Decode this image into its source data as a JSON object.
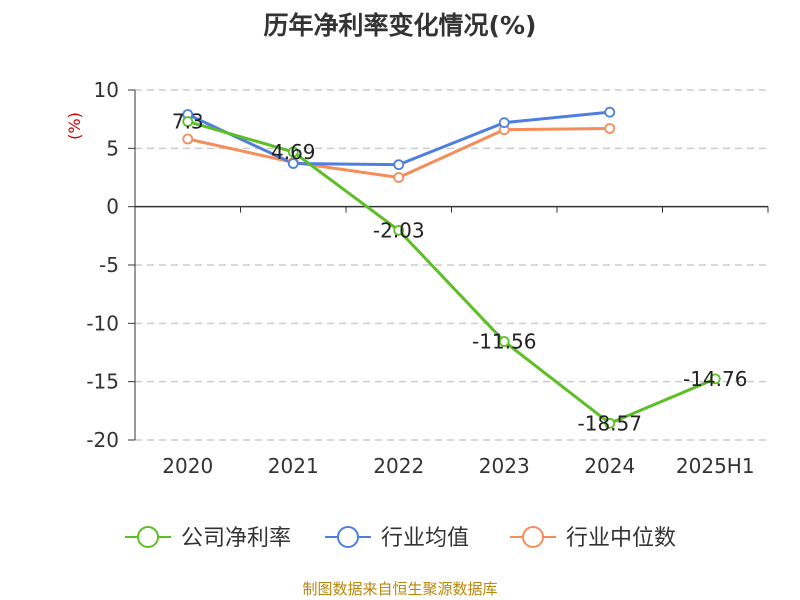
{
  "chart_data": {
    "type": "line",
    "title": "历年净利率变化情况(%)",
    "ylabel": "(%)",
    "categories": [
      "2020",
      "2021",
      "2022",
      "2023",
      "2024",
      "2025H1"
    ],
    "ylim": [
      -20,
      10
    ],
    "yticks": [
      10,
      5,
      0,
      -5,
      -10,
      -15,
      -20
    ],
    "grid": true,
    "legend_position": "bottom",
    "series": [
      {
        "name": "公司净利率",
        "color": "#5cbf25",
        "values": [
          7.3,
          4.69,
          -2.03,
          -11.56,
          -18.57,
          -14.76
        ],
        "labels": [
          "7.3",
          "4.69",
          "-2.03",
          "-11.56",
          "-18.57",
          "-14.76"
        ]
      },
      {
        "name": "行业均值",
        "color": "#4f7fde",
        "values": [
          7.9,
          3.7,
          3.6,
          7.2,
          8.1,
          null
        ]
      },
      {
        "name": "行业中位数",
        "color": "#f78c5b",
        "values": [
          5.8,
          3.8,
          2.5,
          6.6,
          6.7,
          null
        ]
      }
    ]
  },
  "footer": {
    "source": "制图数据来自恒生聚源数据库"
  }
}
